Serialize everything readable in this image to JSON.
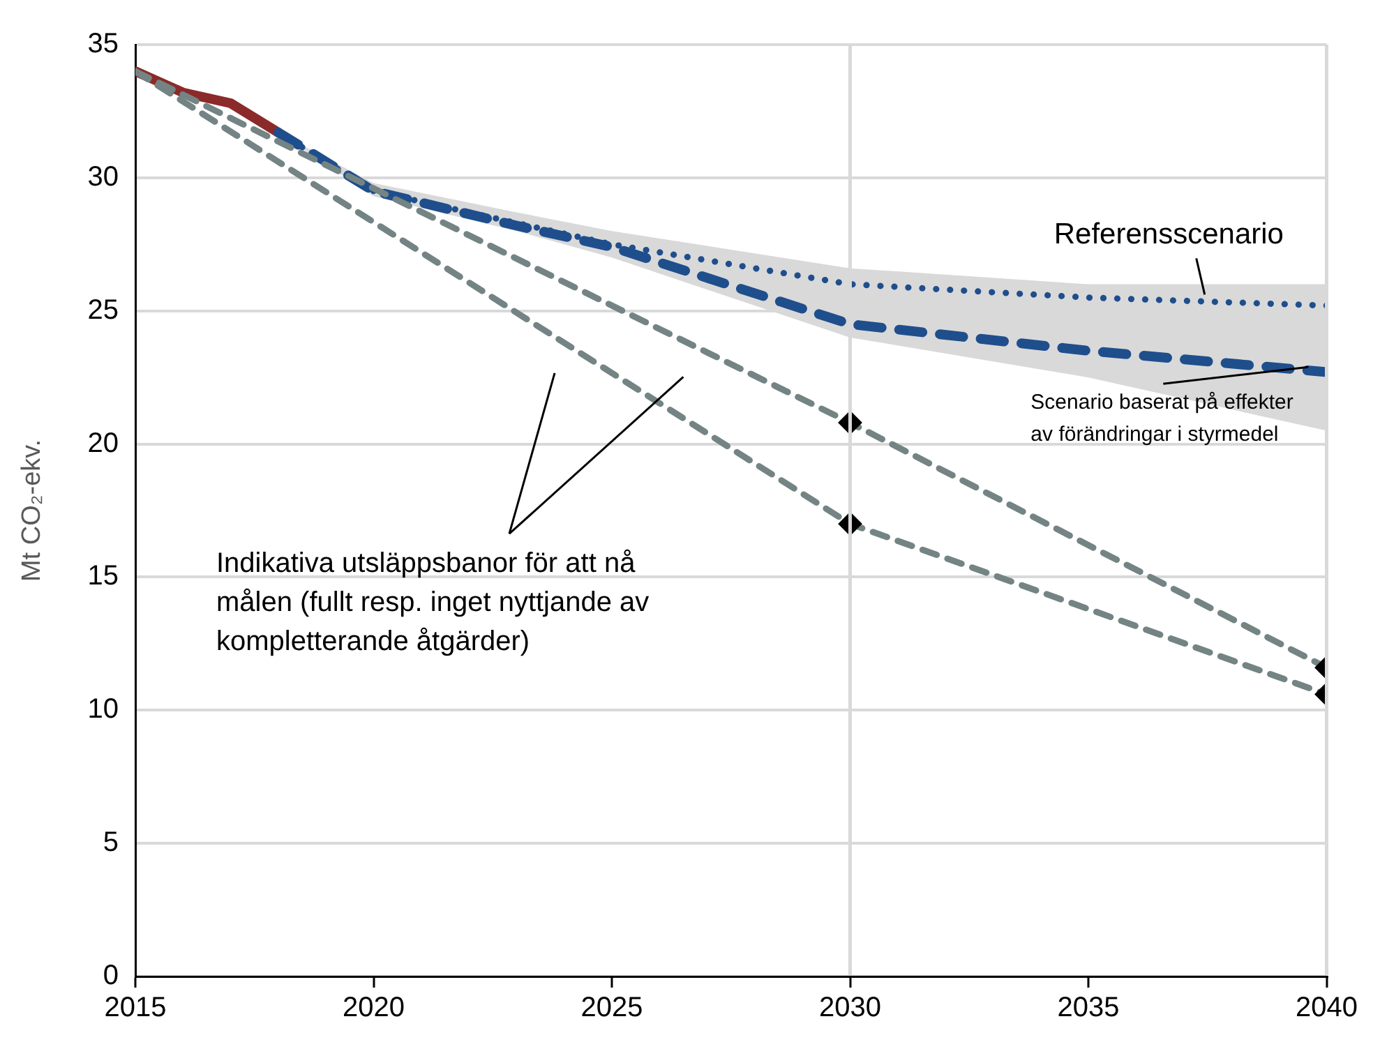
{
  "chart_data": {
    "type": "line",
    "ylabel": "Mt CO₂-ekv.",
    "xlim": [
      2015,
      2040
    ],
    "xticks": [
      2015,
      2020,
      2025,
      2030,
      2035,
      2040
    ],
    "ylim": [
      0,
      35
    ],
    "yticks": [
      0,
      5,
      10,
      15,
      20,
      25,
      30,
      35
    ],
    "grid": "y",
    "legend": false,
    "marker": "none",
    "series": [
      {
        "color": "#8b2a2a",
        "x": [
          2015,
          2016,
          2017,
          2018
        ],
        "values": [
          34.0,
          33.2,
          32.8,
          31.7
        ],
        "line_style": "solid"
      },
      {
        "name": "Referensscenario",
        "color": "#1f4e8c",
        "x": [
          2018,
          2020,
          2025,
          2030,
          2035,
          2040
        ],
        "values": [
          31.7,
          29.5,
          27.5,
          26.0,
          25.5,
          25.2
        ],
        "line_style": "dotted"
      },
      {
        "name": "Scenario baserat på effekter av förändringar i styrmedel",
        "color": "#1f4e8c",
        "x": [
          2018,
          2020,
          2023,
          2025,
          2030,
          2035,
          2040
        ],
        "values": [
          31.7,
          29.5,
          28.2,
          27.4,
          24.5,
          23.5,
          22.7
        ],
        "lower": [
          31.7,
          29.3,
          28.0,
          27.0,
          24.0,
          22.5,
          20.5
        ],
        "upper": [
          31.7,
          29.8,
          28.7,
          28.0,
          26.6,
          26.0,
          26.0
        ],
        "line_style": "dashed"
      },
      {
        "color": "#748484",
        "x": [
          2015,
          2030,
          2040
        ],
        "values": [
          34.0,
          20.8,
          11.6
        ],
        "line_style": "dashed"
      },
      {
        "color": "#748484",
        "x": [
          2015,
          2030,
          2040
        ],
        "values": [
          34.0,
          17.0,
          10.6
        ],
        "line_style": "dashed"
      },
      {
        "type": "scatter",
        "color": "#000000",
        "marker": "diamond",
        "x": [
          2030,
          2030,
          2040,
          2040
        ],
        "values": [
          20.8,
          17.0,
          11.6,
          10.6
        ]
      }
    ],
    "ref_lines": [
      {
        "axis": "x",
        "value": 2030,
        "color": "#d9d9d9"
      },
      {
        "axis": "x",
        "value": 2040,
        "color": "#d9d9d9"
      }
    ],
    "annotations": [
      "Indikativa utsläppsbanor för att nå målen (fullt resp. inget nyttjande av kompletterande åtgärder)"
    ]
  }
}
